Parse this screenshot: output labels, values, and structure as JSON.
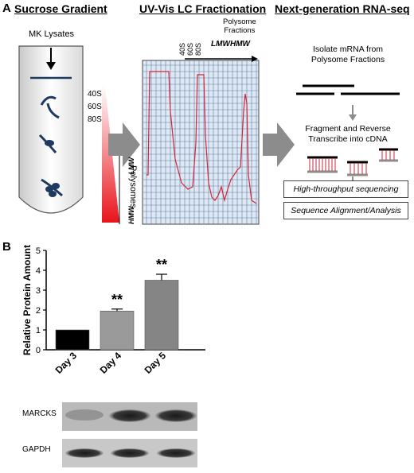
{
  "panel_a": {
    "letter": "A",
    "sucrose": {
      "title": "Sucrose Gradient",
      "lysate_label": "MK Lysates",
      "subunits": [
        "40S",
        "60S",
        "80S"
      ],
      "lmw": "LMW",
      "hmw": "HMW",
      "polysomes": "Polysomes"
    },
    "uvvis": {
      "title": "UV-Vis LC Fractionation",
      "fraction_title_line1": "Polysome",
      "fraction_title_line2": "Fractions",
      "peaks": [
        "40S",
        "60S",
        "80S"
      ],
      "lmw": "LMW",
      "hmw": "HMW"
    },
    "rnaseq": {
      "title": "Next-generation RNA-seq",
      "isolate_line1": "Isolate mRNA from",
      "isolate_line2": "Polysome Fractions",
      "fragment_line1": "Fragment and Reverse",
      "fragment_line2": "Transcribe into cDNA",
      "step1": "High-throughput sequencing",
      "step2": "Sequence Alignment/Analysis"
    }
  },
  "panel_b": {
    "letter": "B",
    "blot_labels": [
      "MARCKS",
      "GAPDH"
    ]
  },
  "chart_data": {
    "type": "bar",
    "categories": [
      "Day 3",
      "Day 4",
      "Day 5"
    ],
    "values": [
      1.0,
      1.95,
      3.5
    ],
    "errors": [
      0,
      0.1,
      0.3
    ],
    "significance": [
      "",
      "**",
      "**"
    ],
    "ylabel": "Relative Protein Amount",
    "ylim": [
      0,
      5
    ],
    "yticks": [
      "0",
      "1",
      "2",
      "3",
      "4",
      "5"
    ],
    "colors": [
      "#000000",
      "#9a9a9a",
      "#858585"
    ]
  }
}
